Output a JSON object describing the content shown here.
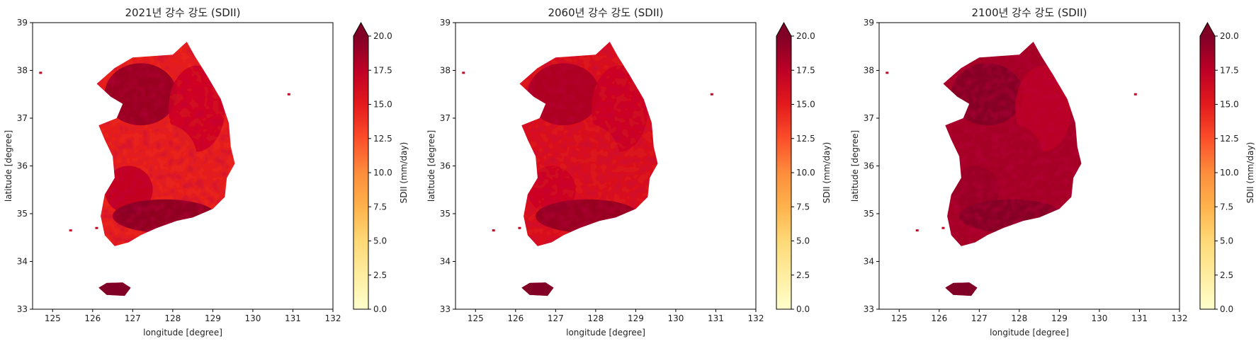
{
  "figure": {
    "panels": [
      {
        "title": "2021년 강수 강도 (SDII)"
      },
      {
        "title": "2060년 강수 강도 (SDII)"
      },
      {
        "title": "2100년 강수 강도 (SDII)"
      }
    ]
  },
  "colorbar": {
    "label": "SDII (mm/day)",
    "ticks": [
      "0.0",
      "2.5",
      "5.0",
      "7.5",
      "10.0",
      "12.5",
      "15.0",
      "17.5",
      "20.0"
    ],
    "extend": "max",
    "colormap": [
      "#ffffcc",
      "#ffeda0",
      "#fed976",
      "#feb24c",
      "#fd8d3c",
      "#fc4e2a",
      "#e31a1c",
      "#bd0026",
      "#800026"
    ],
    "vmin": 0,
    "vmax": 20
  },
  "chart_data": [
    {
      "type": "heatmap",
      "title": "2021년 강수 강도 (SDII)",
      "xlabel": "longitude [degree]",
      "ylabel": "latitude [degree]",
      "xlim": [
        124.5,
        132
      ],
      "ylim": [
        33,
        39
      ],
      "xticks": [
        "125",
        "126",
        "127",
        "128",
        "129",
        "130",
        "131",
        "132"
      ],
      "yticks": [
        "33",
        "34",
        "35",
        "36",
        "37",
        "38",
        "39"
      ],
      "colorbar_label": "SDII (mm/day)",
      "vmin": 0,
      "vmax": 20,
      "regions": [
        {
          "name": "northwest",
          "value": 19.5
        },
        {
          "name": "northeast",
          "value": 16.5
        },
        {
          "name": "central",
          "value": 14.5
        },
        {
          "name": "southwest",
          "value": 17.5
        },
        {
          "name": "south coast",
          "value": 20
        },
        {
          "name": "jeju",
          "value": 20
        }
      ]
    },
    {
      "type": "heatmap",
      "title": "2060년 강수 강도 (SDII)",
      "xlabel": "longitude [degree]",
      "ylabel": "latitude [degree]",
      "xlim": [
        124.5,
        132
      ],
      "ylim": [
        33,
        39
      ],
      "xticks": [
        "125",
        "126",
        "127",
        "128",
        "129",
        "130",
        "131",
        "132"
      ],
      "yticks": [
        "33",
        "34",
        "35",
        "36",
        "37",
        "38",
        "39"
      ],
      "colorbar_label": "SDII (mm/day)",
      "vmin": 0,
      "vmax": 20,
      "regions": [
        {
          "name": "northwest",
          "value": 18.5
        },
        {
          "name": "northeast",
          "value": 16.5
        },
        {
          "name": "central",
          "value": 15.5
        },
        {
          "name": "southwest",
          "value": 16.5
        },
        {
          "name": "south coast",
          "value": 19.5
        },
        {
          "name": "jeju",
          "value": 20
        }
      ]
    },
    {
      "type": "heatmap",
      "title": "2100년 강수 강도 (SDII)",
      "xlabel": "longitude [degree]",
      "ylabel": "latitude [degree]",
      "xlim": [
        124.5,
        132
      ],
      "ylim": [
        33,
        39
      ],
      "xticks": [
        "125",
        "126",
        "127",
        "128",
        "129",
        "130",
        "131",
        "132"
      ],
      "yticks": [
        "33",
        "34",
        "35",
        "36",
        "37",
        "38",
        "39"
      ],
      "colorbar_label": "SDII (mm/day)",
      "vmin": 0,
      "vmax": 20,
      "regions": [
        {
          "name": "northwest",
          "value": 20
        },
        {
          "name": "northeast",
          "value": 17.5
        },
        {
          "name": "central",
          "value": 18.5
        },
        {
          "name": "southwest",
          "value": 19
        },
        {
          "name": "south coast",
          "value": 20
        },
        {
          "name": "jeju",
          "value": 20
        }
      ]
    }
  ]
}
